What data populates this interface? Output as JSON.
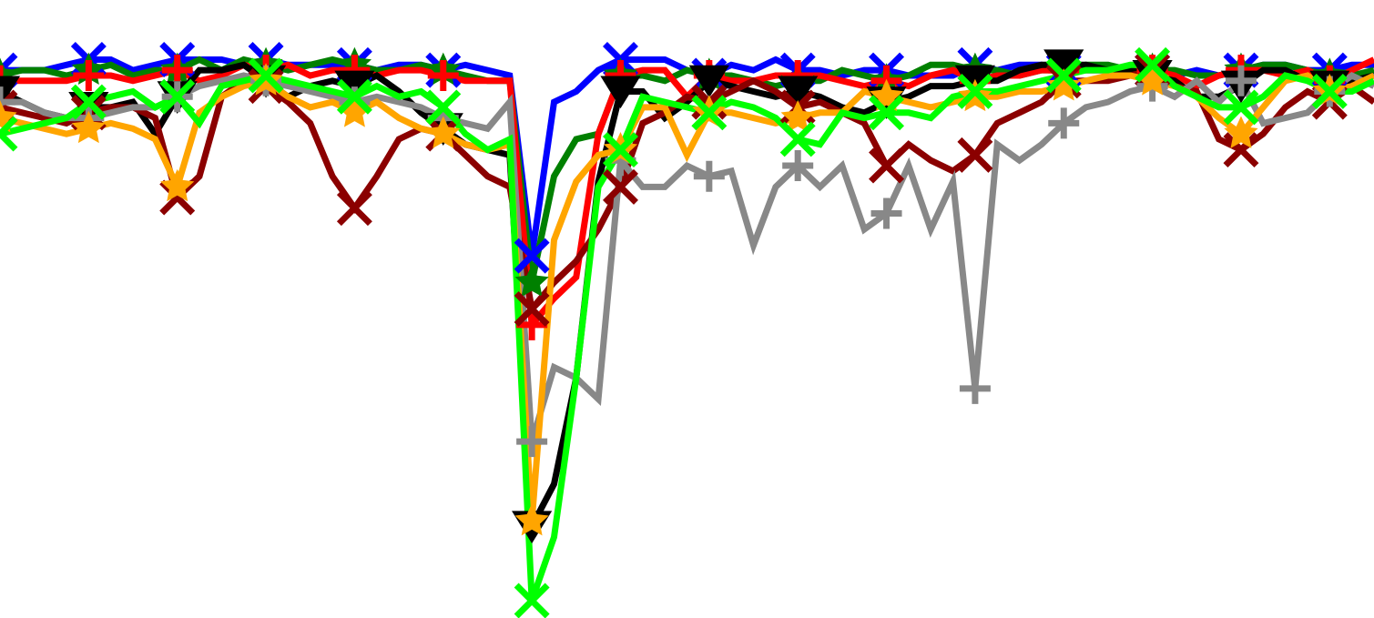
{
  "chart_data": {
    "type": "line",
    "title": "",
    "xlabel": "",
    "ylabel": "",
    "grid": false,
    "legend": "none",
    "xlim": [
      0,
      62
    ],
    "ylim": [
      -100,
      5
    ],
    "x": [
      0,
      1,
      2,
      3,
      4,
      5,
      6,
      7,
      8,
      9,
      10,
      11,
      12,
      13,
      14,
      15,
      16,
      17,
      18,
      19,
      20,
      21,
      22,
      23,
      24,
      25,
      26,
      27,
      28,
      29,
      30,
      31,
      32,
      33,
      34,
      35,
      36,
      37,
      38,
      39,
      40,
      41,
      42,
      43,
      44,
      45,
      46,
      47,
      48,
      49,
      50,
      51,
      52,
      53,
      54,
      55,
      56,
      57,
      58,
      59,
      60,
      61,
      62
    ],
    "series": [
      {
        "color": "#0000ff",
        "marker": "x",
        "marker_every": 4,
        "values": [
          0,
          0,
          0,
          1,
          2,
          2,
          0,
          1,
          2,
          2,
          2,
          1,
          2,
          1,
          1,
          1,
          1,
          0,
          1,
          1,
          0,
          1,
          0,
          -1,
          -35,
          -6,
          -4,
          0,
          2,
          2,
          2,
          0,
          -1,
          1,
          0,
          2,
          0,
          0,
          -1,
          0,
          0,
          -1,
          -1,
          -1,
          1,
          0,
          1,
          1,
          0,
          0,
          0,
          0,
          0,
          -1,
          0,
          -1,
          0,
          1,
          1,
          0,
          0,
          1,
          1
        ]
      },
      {
        "color": "#008000",
        "marker": "star",
        "marker_every": 4,
        "values": [
          -1,
          0,
          0,
          -1,
          0,
          1,
          -1,
          0,
          0,
          2,
          0,
          2,
          1,
          0,
          1,
          2,
          1,
          0,
          0,
          1,
          0,
          -1,
          -2,
          -2,
          -40,
          -20,
          -13,
          -12,
          -1,
          -1,
          -2,
          0,
          -1,
          -1,
          -2,
          -3,
          -2,
          -2,
          0,
          -1,
          -2,
          -1,
          1,
          1,
          0,
          0,
          -1,
          0,
          0,
          1,
          1,
          0,
          0,
          0,
          -1,
          -1,
          0,
          1,
          1,
          0,
          -1,
          -1,
          0
        ]
      },
      {
        "color": "#ff0000",
        "marker": "plus",
        "marker_every": 4,
        "values": [
          -2,
          -2,
          -2,
          -2,
          -1,
          -1,
          -2,
          -1,
          0,
          -2,
          -1,
          1,
          0,
          1,
          -1,
          0,
          0,
          -1,
          0,
          0,
          -1,
          -2,
          -2,
          -2,
          -48,
          -43,
          -39,
          -12,
          -1,
          0,
          0,
          -5,
          -1,
          -2,
          -2,
          -1,
          -1,
          -1,
          -2,
          -3,
          -2,
          -3,
          -1,
          0,
          -2,
          -1,
          -1,
          0,
          0,
          0,
          0,
          0,
          0,
          -1,
          -3,
          -1,
          0,
          0,
          -1,
          0,
          -2,
          0,
          2
        ]
      },
      {
        "color": "#000000",
        "marker": "triangle",
        "marker_every": 4,
        "values": [
          -4,
          -6,
          -8,
          -9,
          -7,
          -7,
          -6,
          -12,
          -5,
          0,
          0,
          1,
          -2,
          -5,
          -3,
          -2,
          -3,
          -1,
          -4,
          -8,
          -11,
          -14,
          -15,
          -16,
          -86,
          -78,
          -58,
          -21,
          -4,
          -4,
          -9,
          -6,
          -2,
          -3,
          -4,
          -5,
          -4,
          -5,
          -7,
          -8,
          -6,
          -5,
          -3,
          -3,
          -2,
          -2,
          0,
          1,
          1,
          1,
          0,
          0,
          -1,
          -2,
          -5,
          -5,
          -3,
          0,
          0,
          -2,
          -3,
          -2,
          -1
        ]
      },
      {
        "color": "#8b0000",
        "marker": "x",
        "marker_every": 4,
        "values": [
          -7,
          -8,
          -9,
          -10,
          -8,
          -7,
          -7,
          -9,
          -24,
          -20,
          -5,
          -2,
          -3,
          -6,
          -10,
          -20,
          -26,
          -20,
          -13,
          -11,
          -12,
          -16,
          -20,
          -22,
          -45,
          -40,
          -36,
          -30,
          -22,
          -10,
          -8,
          -5,
          -6,
          -4,
          -2,
          -4,
          -7,
          -6,
          -8,
          -10,
          -18,
          -14,
          -17,
          -19,
          -16,
          -10,
          -8,
          -6,
          -2,
          -2,
          -2,
          -1,
          0,
          -3,
          -4,
          -13,
          -15,
          -12,
          -7,
          -4,
          -6,
          -3,
          -6
        ]
      },
      {
        "color": "#888888",
        "marker": "plus",
        "marker_every": 4,
        "values": [
          -6,
          -6,
          -8,
          -9,
          -9,
          -8,
          -7,
          -7,
          -5,
          -3,
          -2,
          -1,
          -2,
          -3,
          -4,
          -5,
          -6,
          -5,
          -6,
          -7,
          -9,
          -10,
          -11,
          -6,
          -70,
          -56,
          -58,
          -62,
          -17,
          -22,
          -22,
          -18,
          -20,
          -19,
          -33,
          -22,
          -18,
          -22,
          -18,
          -30,
          -27,
          -18,
          -30,
          -21,
          -60,
          -14,
          -17,
          -14,
          -10,
          -7,
          -6,
          -4,
          -3,
          -5,
          -2,
          -6,
          -2,
          -10,
          -9,
          -8,
          -4,
          -1,
          -3
        ]
      },
      {
        "color": "#ffa500",
        "marker": "star",
        "marker_every": 4,
        "values": [
          -9,
          -10,
          -11,
          -12,
          -11,
          -10,
          -11,
          -13,
          -22,
          -8,
          -5,
          -3,
          -2,
          -5,
          -7,
          -6,
          -8,
          -6,
          -9,
          -11,
          -12,
          -14,
          -15,
          -14,
          -85,
          -32,
          -21,
          -16,
          -15,
          -7,
          -7,
          -16,
          -8,
          -8,
          -9,
          -10,
          -9,
          -8,
          -8,
          -4,
          -5,
          -6,
          -7,
          -6,
          -5,
          -5,
          -4,
          -4,
          -3,
          -2,
          -1,
          -1,
          -2,
          -3,
          -5,
          -9,
          -12,
          -7,
          -2,
          -1,
          -4,
          -3,
          -1
        ]
      },
      {
        "color": "#00ff00",
        "marker": "x",
        "marker_every": 4,
        "values": [
          -12,
          -11,
          -10,
          -9,
          -6,
          -5,
          -4,
          -7,
          -5,
          -10,
          -3,
          -2,
          -1,
          -2,
          -3,
          -4,
          -5,
          -3,
          -5,
          -4,
          -7,
          -12,
          -15,
          -13,
          -100,
          -88,
          -58,
          -22,
          -15,
          -5,
          -6,
          -7,
          -8,
          -6,
          -7,
          -9,
          -13,
          -14,
          -8,
          -9,
          -8,
          -8,
          -9,
          -5,
          -4,
          -4,
          -3,
          -2,
          -1,
          0,
          0,
          1,
          1,
          -3,
          -5,
          -7,
          -7,
          -5,
          -1,
          -2,
          -4,
          -4,
          -2
        ]
      }
    ]
  }
}
